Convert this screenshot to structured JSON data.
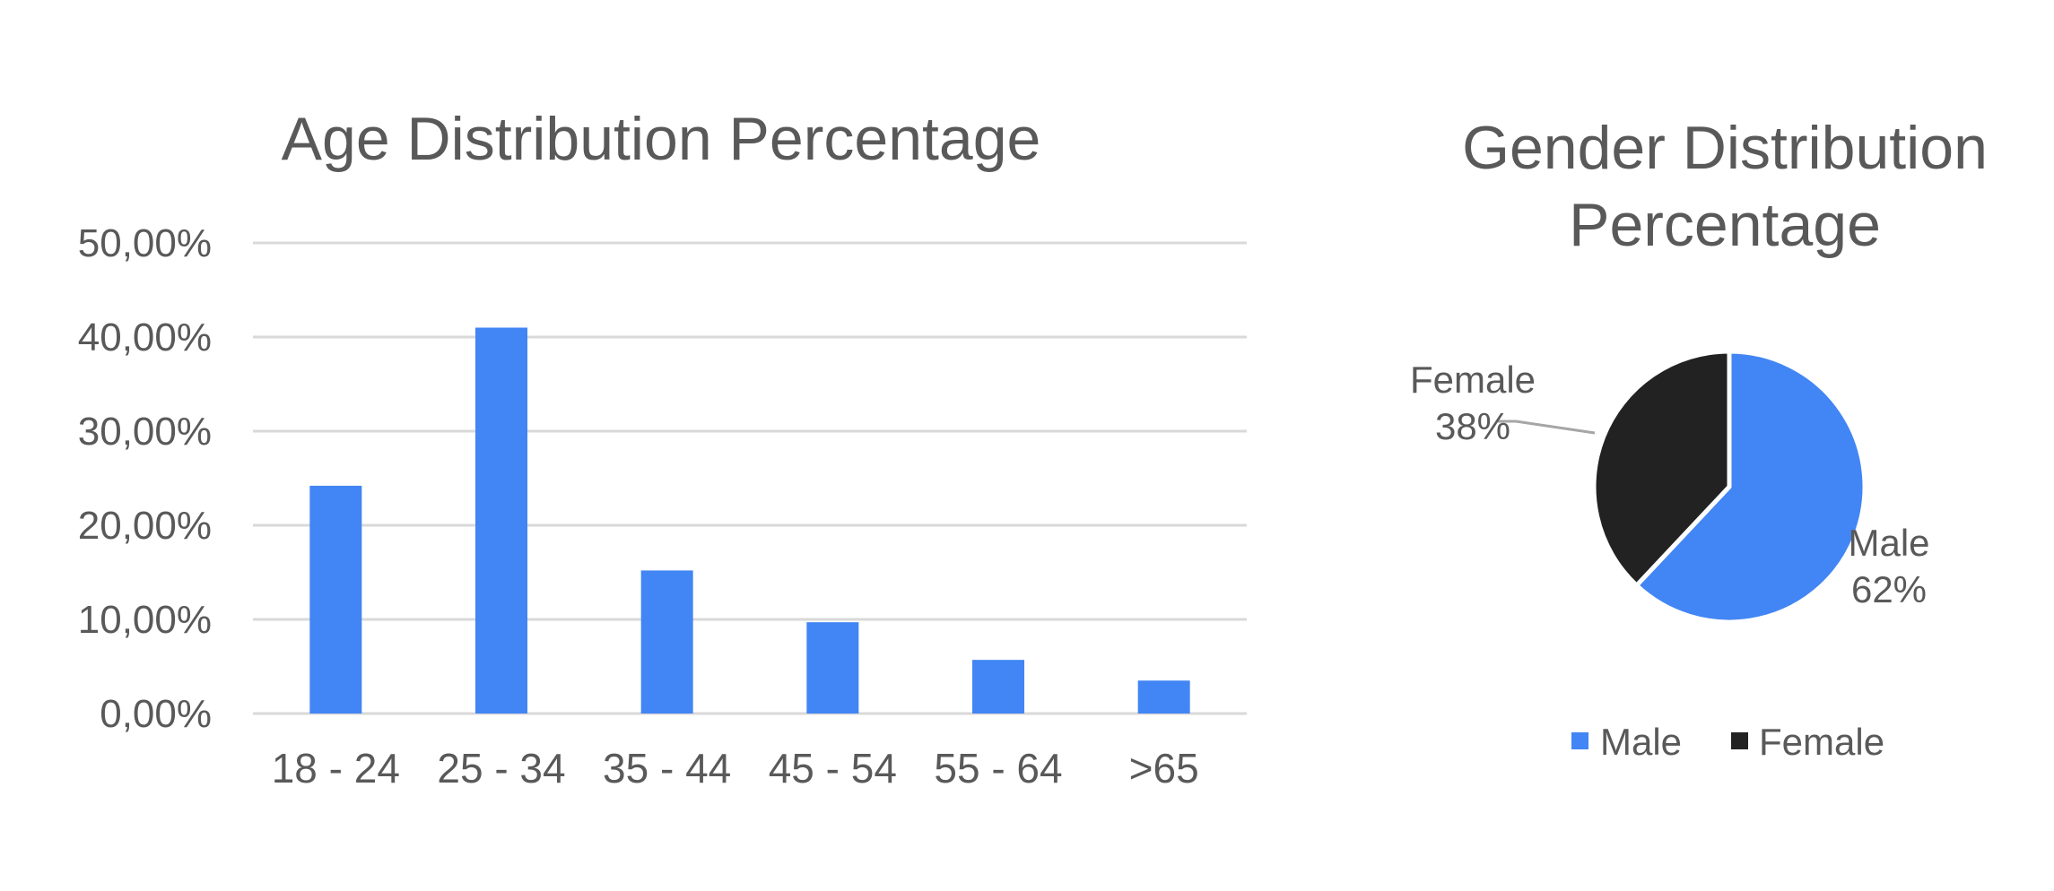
{
  "chart_data": [
    {
      "type": "bar",
      "title": "Age Distribution Percentage",
      "xlabel": "",
      "ylabel": "",
      "categories": [
        "18 - 24",
        "25 - 34",
        "35 - 44",
        "45 - 54",
        "55 - 64",
        ">65"
      ],
      "values": [
        24.2,
        41.0,
        15.2,
        9.7,
        5.7,
        3.5
      ],
      "yticks": [
        "0,00%",
        "10,00%",
        "20,00%",
        "30,00%",
        "40,00%",
        "50,00%"
      ],
      "ylim": [
        0,
        50
      ],
      "grid": true,
      "legend": "none",
      "color": "#4285F4"
    },
    {
      "type": "pie",
      "title_lines": [
        "Gender Distribution",
        "Percentage"
      ],
      "slices": [
        {
          "name": "Male",
          "value": 62,
          "label": "62%",
          "color": "#4285F4"
        },
        {
          "name": "Female",
          "value": 38,
          "label": "38%",
          "color": "#222222"
        }
      ],
      "legend": "bottom",
      "legend_items": [
        "Male",
        "Female"
      ]
    }
  ]
}
